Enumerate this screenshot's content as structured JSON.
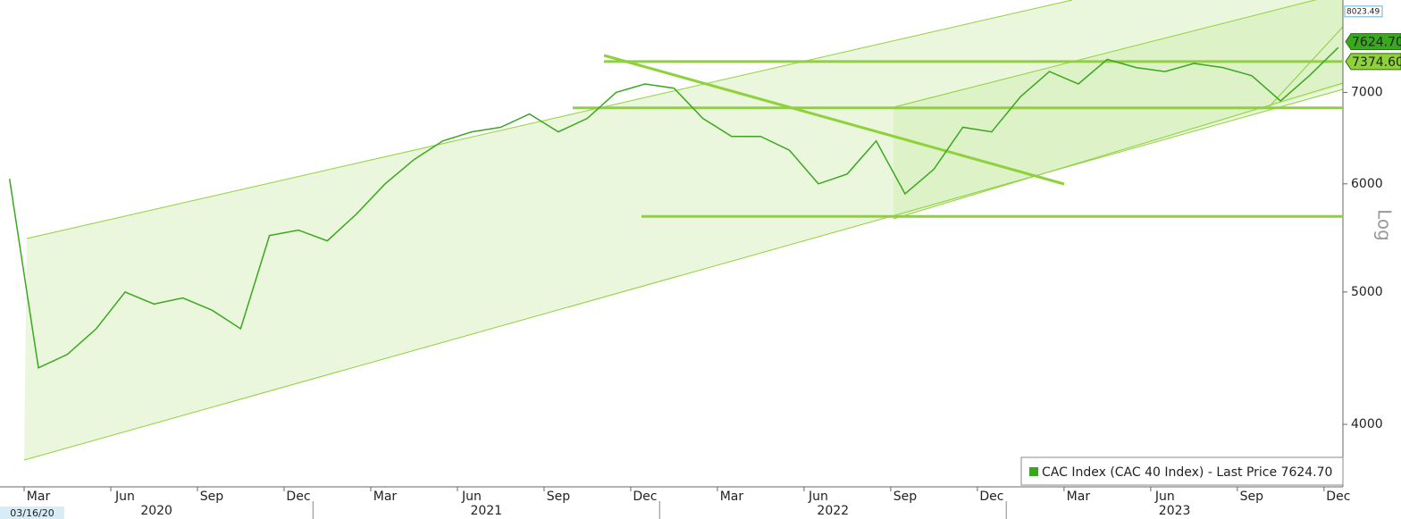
{
  "chart_data": {
    "type": "line",
    "color": "#3aa81e",
    "x": [
      "2020-02",
      "2020-03",
      "2020-04",
      "2020-05",
      "2020-06",
      "2020-07",
      "2020-08",
      "2020-09",
      "2020-10",
      "2020-11",
      "2020-12",
      "2021-01",
      "2021-02",
      "2021-03",
      "2021-04",
      "2021-05",
      "2021-06",
      "2021-07",
      "2021-08",
      "2021-09",
      "2021-10",
      "2021-11",
      "2021-12",
      "2022-01",
      "2022-02",
      "2022-03",
      "2022-04",
      "2022-05",
      "2022-06",
      "2022-07",
      "2022-08",
      "2022-09",
      "2022-10",
      "2022-11",
      "2022-12",
      "2023-01",
      "2023-02",
      "2023-03",
      "2023-04",
      "2023-05",
      "2023-06",
      "2023-07",
      "2023-08",
      "2023-09",
      "2023-10",
      "2023-11",
      "2023-12"
    ],
    "values": [
      6050,
      4400,
      4500,
      4700,
      5000,
      4900,
      4950,
      4850,
      4700,
      5500,
      5550,
      5450,
      5700,
      6000,
      6250,
      6450,
      6550,
      6600,
      6750,
      6550,
      6700,
      7000,
      7100,
      7050,
      6700,
      6500,
      6500,
      6350,
      6000,
      6100,
      6450,
      5900,
      6150,
      6600,
      6550,
      6950,
      7250,
      7100,
      7400,
      7300,
      7250,
      7350,
      7300,
      7200,
      6900,
      7200,
      7550
    ],
    "log_scale": true,
    "ylim": [
      3600,
      8180
    ],
    "yticks": [
      4000,
      5000,
      6000,
      7000
    ],
    "y_axis_label": "Log",
    "xticks": [
      {
        "value": "2020-03",
        "label": "Mar"
      },
      {
        "value": "2020-06",
        "label": "Jun"
      },
      {
        "value": "2020-09",
        "label": "Sep"
      },
      {
        "value": "2020-12",
        "label": "Dec"
      },
      {
        "value": "2021-03",
        "label": "Mar"
      },
      {
        "value": "2021-06",
        "label": "Jun"
      },
      {
        "value": "2021-09",
        "label": "Sep"
      },
      {
        "value": "2021-12",
        "label": "Dec"
      },
      {
        "value": "2022-03",
        "label": "Mar"
      },
      {
        "value": "2022-06",
        "label": "Jun"
      },
      {
        "value": "2022-09",
        "label": "Sep"
      },
      {
        "value": "2022-12",
        "label": "Dec"
      },
      {
        "value": "2023-03",
        "label": "Mar"
      },
      {
        "value": "2023-06",
        "label": "Jun"
      },
      {
        "value": "2023-09",
        "label": "Sep"
      },
      {
        "value": "2023-12",
        "label": "Dec"
      }
    ],
    "years": [
      "2020",
      "2021",
      "2022",
      "2023"
    ],
    "start_label": "03/16/20",
    "levels": [
      7374.6,
      6820,
      5680
    ],
    "level_labels": [
      "7374.60"
    ],
    "last_price": 7624.7,
    "last_price_label": "7624.70",
    "top_marker": 8023.49,
    "top_marker_label": "8023.49",
    "legend": "CAC Index (CAC 40 Index) - Last Price 7624.70"
  }
}
